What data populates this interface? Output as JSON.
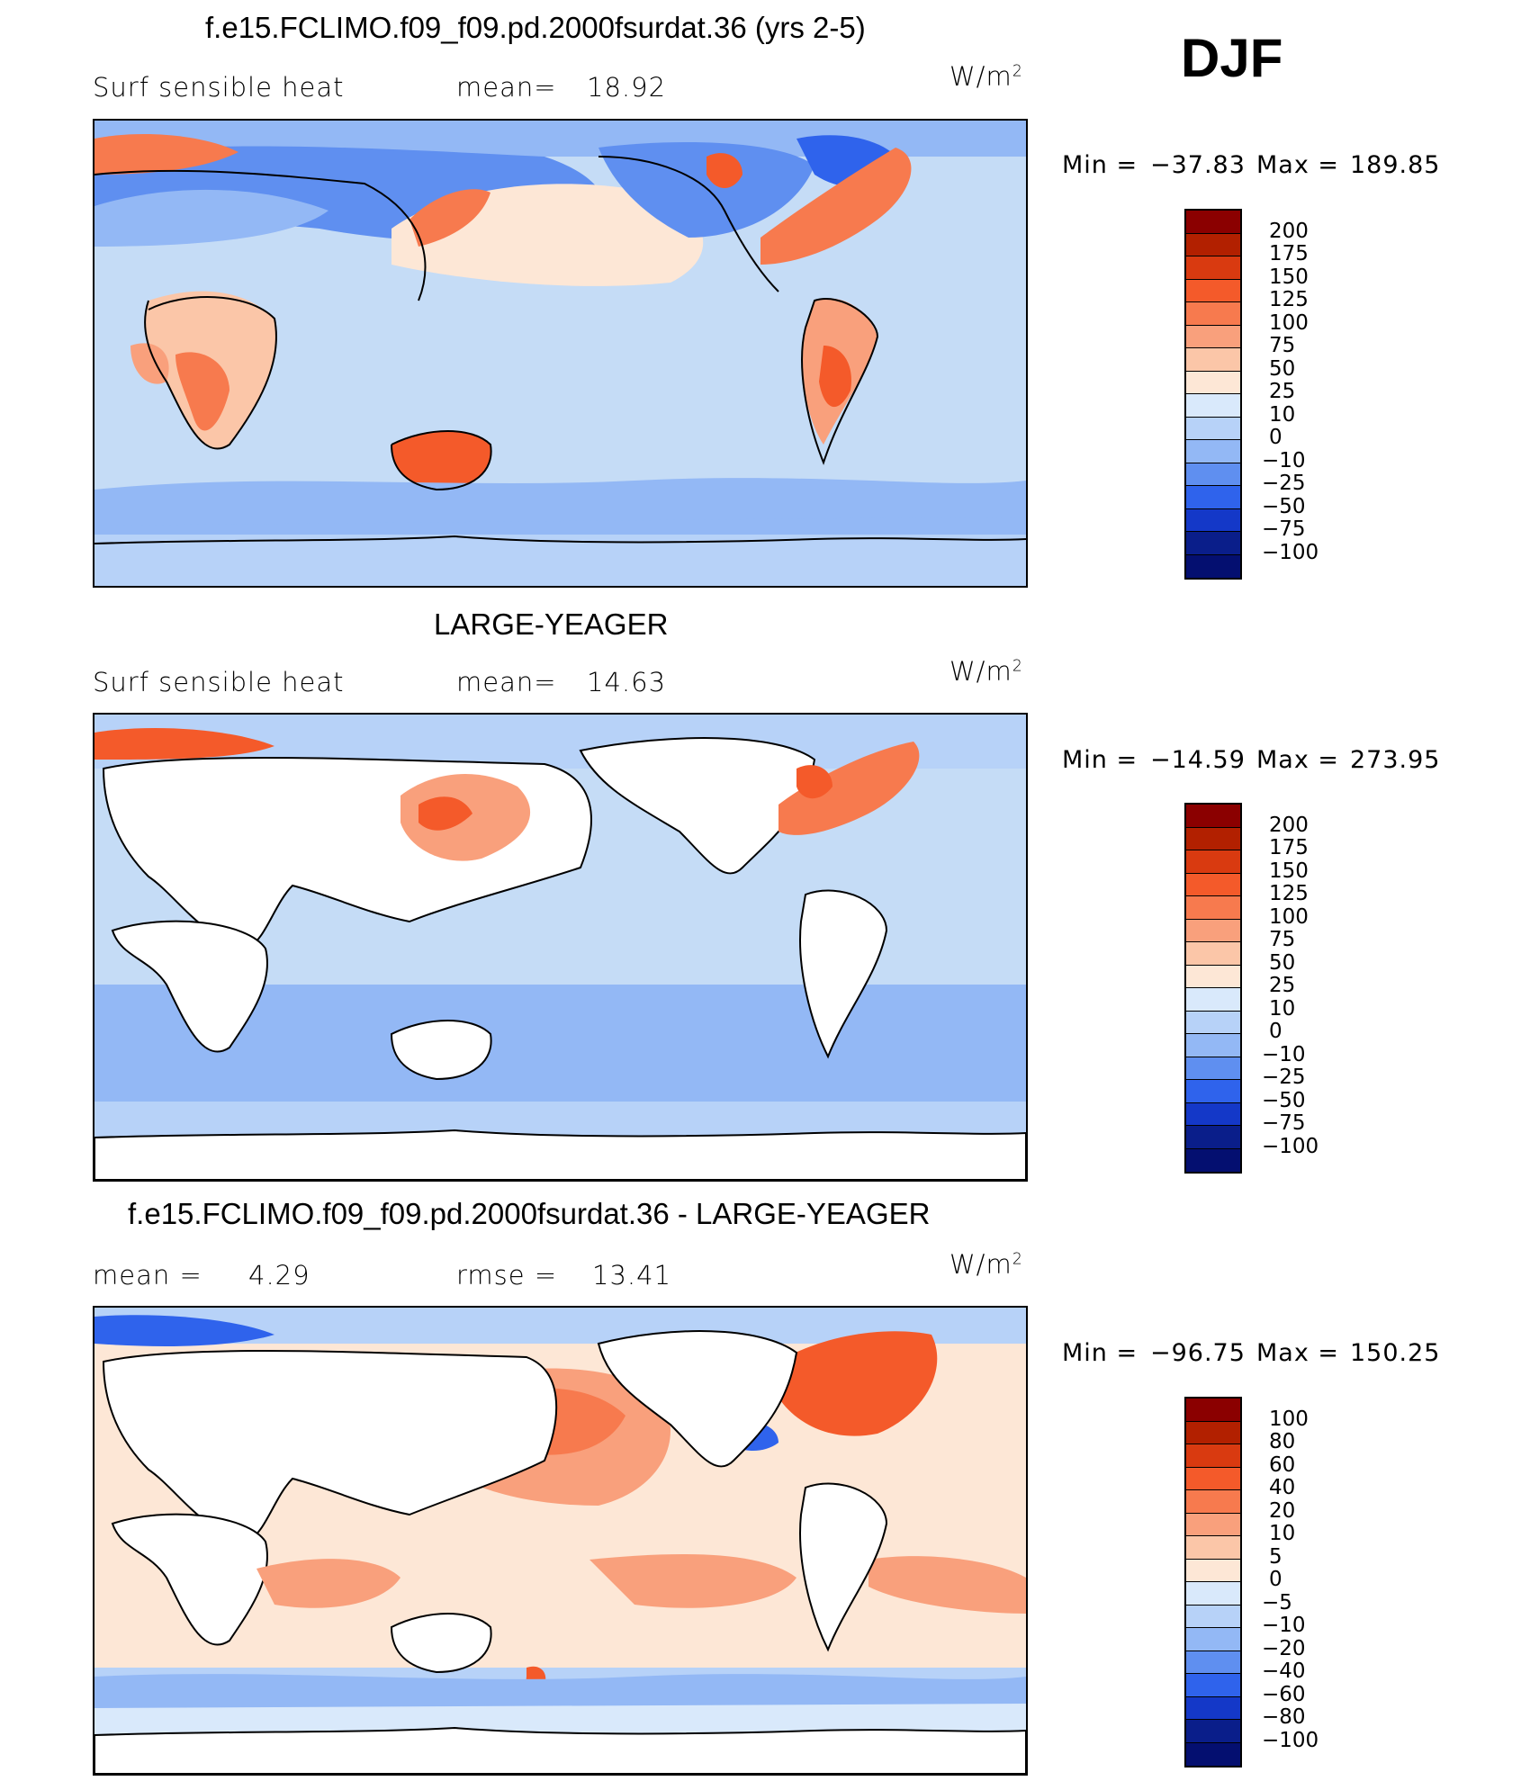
{
  "season": "DJF",
  "units": {
    "base": "W/m",
    "exp": "2"
  },
  "panels": [
    {
      "title": "f.e15.FCLIMO.f09_f09.pd.2000fsurdat.36 (yrs 2-5)",
      "variable": "Surf  sensible  heat",
      "stat_label": "mean=",
      "stat_value": "18.92",
      "min_label": "Min  =",
      "min_value": "−37.83",
      "max_label": "Max  =",
      "max_value": "189.85",
      "colorbar_levels": [
        "200",
        "175",
        "150",
        "125",
        "100",
        "75",
        "50",
        "25",
        "10",
        "0",
        "−10",
        "−25",
        "−50",
        "−75",
        "−100"
      ]
    },
    {
      "title": "LARGE-YEAGER",
      "variable": "Surf  sensible  heat",
      "stat_label": "mean=",
      "stat_value": "14.63",
      "min_label": "Min  =",
      "min_value": "−14.59",
      "max_label": "Max  =",
      "max_value": "273.95",
      "colorbar_levels": [
        "200",
        "175",
        "150",
        "125",
        "100",
        "75",
        "50",
        "25",
        "10",
        "0",
        "−10",
        "−25",
        "−50",
        "−75",
        "−100"
      ]
    },
    {
      "title": "f.e15.FCLIMO.f09_f09.pd.2000fsurdat.36 - LARGE-YEAGER",
      "variable": "mean  =",
      "stat_label": "",
      "stat_value": "4.29",
      "rmse_label": "rmse  =",
      "rmse_value": "13.41",
      "min_label": "Min  =",
      "min_value": "−96.75",
      "max_label": "Max  =",
      "max_value": "150.25",
      "colorbar_levels": [
        "100",
        "80",
        "60",
        "40",
        "20",
        "10",
        "5",
        "0",
        "−5",
        "−10",
        "−20",
        "−40",
        "−60",
        "−80",
        "−100"
      ]
    }
  ],
  "colors": {
    "scale": [
      "#8b0000",
      "#b22000",
      "#d93a10",
      "#f45a2a",
      "#f77a4e",
      "#f9a07c",
      "#fbc6a8",
      "#fde7d6",
      "#d9e9fb",
      "#b7d2f8",
      "#93b8f5",
      "#5f8ff0",
      "#2f63ec",
      "#1438c8",
      "#0a1e8a",
      "#040f70"
    ],
    "ocean_neutral": "#c5dcf6",
    "land_white": "#ffffff"
  }
}
